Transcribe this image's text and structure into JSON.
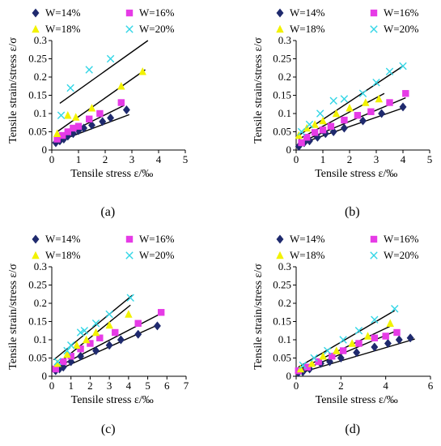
{
  "chart_data": [
    {
      "type": "scatter",
      "panel_label": "(a)",
      "xlabel": "Tensile stress ε/‰",
      "ylabel": "Tensile strain/stress ε/σ",
      "xlim": [
        0,
        5
      ],
      "ylim": [
        0,
        0.3
      ],
      "xticks": [
        "0",
        "1",
        "2",
        "3",
        "4",
        "5"
      ],
      "yticks": [
        "0",
        "0.05",
        "0.1",
        "0.15",
        "0.2",
        "0.25",
        "0.3"
      ],
      "series": [
        {
          "name": "W=14%",
          "marker": "diamond",
          "color": "#1f2a6e",
          "points": [
            [
              0.15,
              0.02
            ],
            [
              0.3,
              0.025
            ],
            [
              0.45,
              0.03
            ],
            [
              0.6,
              0.038
            ],
            [
              0.8,
              0.045
            ],
            [
              1.0,
              0.053
            ],
            [
              1.2,
              0.06
            ],
            [
              1.5,
              0.068
            ],
            [
              1.9,
              0.078
            ],
            [
              2.2,
              0.088
            ],
            [
              2.8,
              0.11
            ]
          ],
          "fit": [
            [
              0.1,
              0.02
            ],
            [
              2.9,
              0.097
            ]
          ]
        },
        {
          "name": "W=16%",
          "marker": "square",
          "color": "#e63be6",
          "points": [
            [
              0.2,
              0.03
            ],
            [
              0.4,
              0.04
            ],
            [
              0.6,
              0.05
            ],
            [
              0.8,
              0.06
            ],
            [
              1.0,
              0.065
            ],
            [
              1.4,
              0.085
            ],
            [
              1.8,
              0.1
            ],
            [
              2.6,
              0.13
            ]
          ],
          "fit": [
            [
              0.1,
              0.028
            ],
            [
              2.7,
              0.122
            ]
          ]
        },
        {
          "name": "W=18%",
          "marker": "triangle",
          "color": "#f2f200",
          "points": [
            [
              0.2,
              0.045
            ],
            [
              0.6,
              0.095
            ],
            [
              0.9,
              0.09
            ],
            [
              1.5,
              0.115
            ],
            [
              2.6,
              0.175
            ],
            [
              3.4,
              0.215
            ]
          ],
          "fit": [
            [
              0.2,
              0.05
            ],
            [
              3.5,
              0.22
            ]
          ]
        },
        {
          "name": "W=20%",
          "marker": "cross",
          "color": "#33d6e6",
          "points": [
            [
              0.35,
              0.095
            ],
            [
              0.7,
              0.17
            ],
            [
              1.4,
              0.22
            ],
            [
              2.2,
              0.25
            ]
          ],
          "fit": [
            [
              0.3,
              0.128
            ],
            [
              3.6,
              0.3
            ]
          ]
        }
      ]
    },
    {
      "type": "scatter",
      "panel_label": "(b)",
      "xlabel": "Tensile stress ε/‰",
      "ylabel": "Tensile strain/stress ε/σ",
      "xlim": [
        0,
        5
      ],
      "ylim": [
        0,
        0.3
      ],
      "xticks": [
        "0",
        "1",
        "2",
        "3",
        "4",
        "5"
      ],
      "yticks": [
        "0",
        "0.05",
        "0.1",
        "0.15",
        "0.2",
        "0.25",
        "0.3"
      ],
      "series": [
        {
          "name": "W=14%",
          "marker": "diamond",
          "color": "#1f2a6e",
          "points": [
            [
              0.1,
              0.01
            ],
            [
              0.3,
              0.02
            ],
            [
              0.5,
              0.025
            ],
            [
              0.8,
              0.035
            ],
            [
              1.1,
              0.045
            ],
            [
              1.4,
              0.05
            ],
            [
              1.8,
              0.06
            ],
            [
              2.5,
              0.08
            ],
            [
              3.2,
              0.1
            ],
            [
              4.0,
              0.118
            ]
          ],
          "fit": [
            [
              0.1,
              0.016
            ],
            [
              4.0,
              0.115
            ]
          ]
        },
        {
          "name": "W=16%",
          "marker": "square",
          "color": "#e63be6",
          "points": [
            [
              0.2,
              0.02
            ],
            [
              0.4,
              0.035
            ],
            [
              0.7,
              0.048
            ],
            [
              1.0,
              0.055
            ],
            [
              1.3,
              0.065
            ],
            [
              1.8,
              0.082
            ],
            [
              2.3,
              0.095
            ],
            [
              2.8,
              0.105
            ],
            [
              3.5,
              0.13
            ],
            [
              4.1,
              0.155
            ]
          ],
          "fit": [
            [
              0.1,
              0.02
            ],
            [
              4.1,
              0.143
            ]
          ]
        },
        {
          "name": "W=18%",
          "marker": "triangle",
          "color": "#f2f200",
          "points": [
            [
              0.1,
              0.04
            ],
            [
              0.4,
              0.06
            ],
            [
              0.7,
              0.07
            ],
            [
              1.0,
              0.08
            ],
            [
              1.5,
              0.1
            ],
            [
              2.0,
              0.115
            ],
            [
              2.6,
              0.13
            ],
            [
              3.1,
              0.14
            ]
          ],
          "fit": [
            [
              0.1,
              0.03
            ],
            [
              3.3,
              0.155
            ]
          ]
        },
        {
          "name": "W=20%",
          "marker": "cross",
          "color": "#33d6e6",
          "points": [
            [
              0.2,
              0.05
            ],
            [
              0.5,
              0.07
            ],
            [
              0.9,
              0.1
            ],
            [
              1.4,
              0.135
            ],
            [
              1.8,
              0.14
            ],
            [
              2.5,
              0.155
            ],
            [
              3.0,
              0.185
            ],
            [
              3.5,
              0.215
            ],
            [
              4.0,
              0.23
            ]
          ],
          "fit": [
            [
              0.1,
              0.04
            ],
            [
              4.0,
              0.23
            ]
          ]
        }
      ]
    },
    {
      "type": "scatter",
      "panel_label": "(c)",
      "xlabel": "Tensile stress ε/‰",
      "ylabel": "Tensile strain/stress ε/σ",
      "xlim": [
        0,
        7
      ],
      "ylim": [
        0,
        0.3
      ],
      "xticks": [
        "0",
        "1",
        "2",
        "3",
        "4",
        "5",
        "6",
        "7"
      ],
      "yticks": [
        "0",
        "0.05",
        "0.1",
        "0.15",
        "0.2",
        "0.25",
        "0.3"
      ],
      "series": [
        {
          "name": "W=14%",
          "marker": "diamond",
          "color": "#1f2a6e",
          "points": [
            [
              0.2,
              0.015
            ],
            [
              0.4,
              0.02
            ],
            [
              0.6,
              0.025
            ],
            [
              1.0,
              0.04
            ],
            [
              1.5,
              0.055
            ],
            [
              2.3,
              0.07
            ],
            [
              3.0,
              0.085
            ],
            [
              3.6,
              0.1
            ],
            [
              4.5,
              0.115
            ],
            [
              5.5,
              0.138
            ]
          ],
          "fit": [
            [
              0.1,
              0.012
            ],
            [
              5.5,
              0.14
            ]
          ]
        },
        {
          "name": "W=16%",
          "marker": "square",
          "color": "#e63be6",
          "points": [
            [
              0.2,
              0.02
            ],
            [
              0.6,
              0.04
            ],
            [
              1.0,
              0.055
            ],
            [
              1.5,
              0.075
            ],
            [
              2.0,
              0.09
            ],
            [
              2.5,
              0.105
            ],
            [
              3.3,
              0.12
            ],
            [
              4.5,
              0.145
            ],
            [
              5.7,
              0.175
            ]
          ],
          "fit": [
            [
              0.1,
              0.02
            ],
            [
              5.8,
              0.175
            ]
          ]
        },
        {
          "name": "W=18%",
          "marker": "triangle",
          "color": "#f2f200",
          "points": [
            [
              0.3,
              0.035
            ],
            [
              0.8,
              0.06
            ],
            [
              1.3,
              0.085
            ],
            [
              1.8,
              0.1
            ],
            [
              2.3,
              0.12
            ],
            [
              3.0,
              0.14
            ],
            [
              4.0,
              0.17
            ]
          ],
          "fit": [
            [
              0.1,
              0.025
            ],
            [
              4.1,
              0.195
            ]
          ]
        },
        {
          "name": "W=20%",
          "marker": "cross",
          "color": "#33d6e6",
          "points": [
            [
              0.3,
              0.04
            ],
            [
              0.8,
              0.07
            ],
            [
              1.0,
              0.085
            ],
            [
              1.5,
              0.12
            ],
            [
              1.7,
              0.125
            ],
            [
              2.3,
              0.145
            ],
            [
              3.0,
              0.17
            ],
            [
              4.1,
              0.215
            ]
          ],
          "fit": [
            [
              0.1,
              0.045
            ],
            [
              4.2,
              0.222
            ]
          ]
        }
      ]
    },
    {
      "type": "scatter",
      "panel_label": "(d)",
      "xlabel": "Tensile stress ε/‰",
      "ylabel": "Tensile strain/stress ε/σ",
      "xlim": [
        0,
        6
      ],
      "ylim": [
        0,
        0.3
      ],
      "xticks": [
        "0",
        "2",
        "4",
        "6"
      ],
      "yticks": [
        "0",
        "0.05",
        "0.1",
        "0.15",
        "0.2",
        "0.25",
        "0.3"
      ],
      "series": [
        {
          "name": "W=14%",
          "marker": "diamond",
          "color": "#1f2a6e",
          "points": [
            [
              0.1,
              0.01
            ],
            [
              0.3,
              0.012
            ],
            [
              0.6,
              0.02
            ],
            [
              1.1,
              0.035
            ],
            [
              1.5,
              0.04
            ],
            [
              2.0,
              0.05
            ],
            [
              2.7,
              0.065
            ],
            [
              3.5,
              0.08
            ],
            [
              4.1,
              0.09
            ],
            [
              4.6,
              0.1
            ],
            [
              5.1,
              0.105
            ]
          ],
          "fit": [
            [
              0.1,
              0.008
            ],
            [
              5.3,
              0.102
            ]
          ]
        },
        {
          "name": "W=16%",
          "marker": "square",
          "color": "#e63be6",
          "points": [
            [
              0.1,
              0.015
            ],
            [
              0.5,
              0.025
            ],
            [
              1.0,
              0.04
            ],
            [
              1.6,
              0.055
            ],
            [
              2.1,
              0.07
            ],
            [
              2.8,
              0.09
            ],
            [
              3.5,
              0.105
            ],
            [
              4.0,
              0.11
            ],
            [
              4.5,
              0.12
            ]
          ],
          "fit": [
            [
              0.1,
              0.012
            ],
            [
              4.5,
              0.125
            ]
          ]
        },
        {
          "name": "W=18%",
          "marker": "triangle",
          "color": "#f2f200",
          "points": [
            [
              0.2,
              0.02
            ],
            [
              0.7,
              0.035
            ],
            [
              1.2,
              0.055
            ],
            [
              1.8,
              0.07
            ],
            [
              2.5,
              0.09
            ],
            [
              3.2,
              0.11
            ],
            [
              4.2,
              0.145
            ]
          ],
          "fit": [
            [
              0.1,
              0.018
            ],
            [
              4.3,
              0.14
            ]
          ]
        },
        {
          "name": "W=20%",
          "marker": "cross",
          "color": "#33d6e6",
          "points": [
            [
              0.3,
              0.03
            ],
            [
              0.8,
              0.05
            ],
            [
              1.4,
              0.07
            ],
            [
              2.1,
              0.1
            ],
            [
              2.8,
              0.125
            ],
            [
              3.5,
              0.155
            ],
            [
              4.4,
              0.185
            ]
          ],
          "fit": [
            [
              0.1,
              0.025
            ],
            [
              4.4,
              0.18
            ]
          ]
        }
      ]
    }
  ]
}
